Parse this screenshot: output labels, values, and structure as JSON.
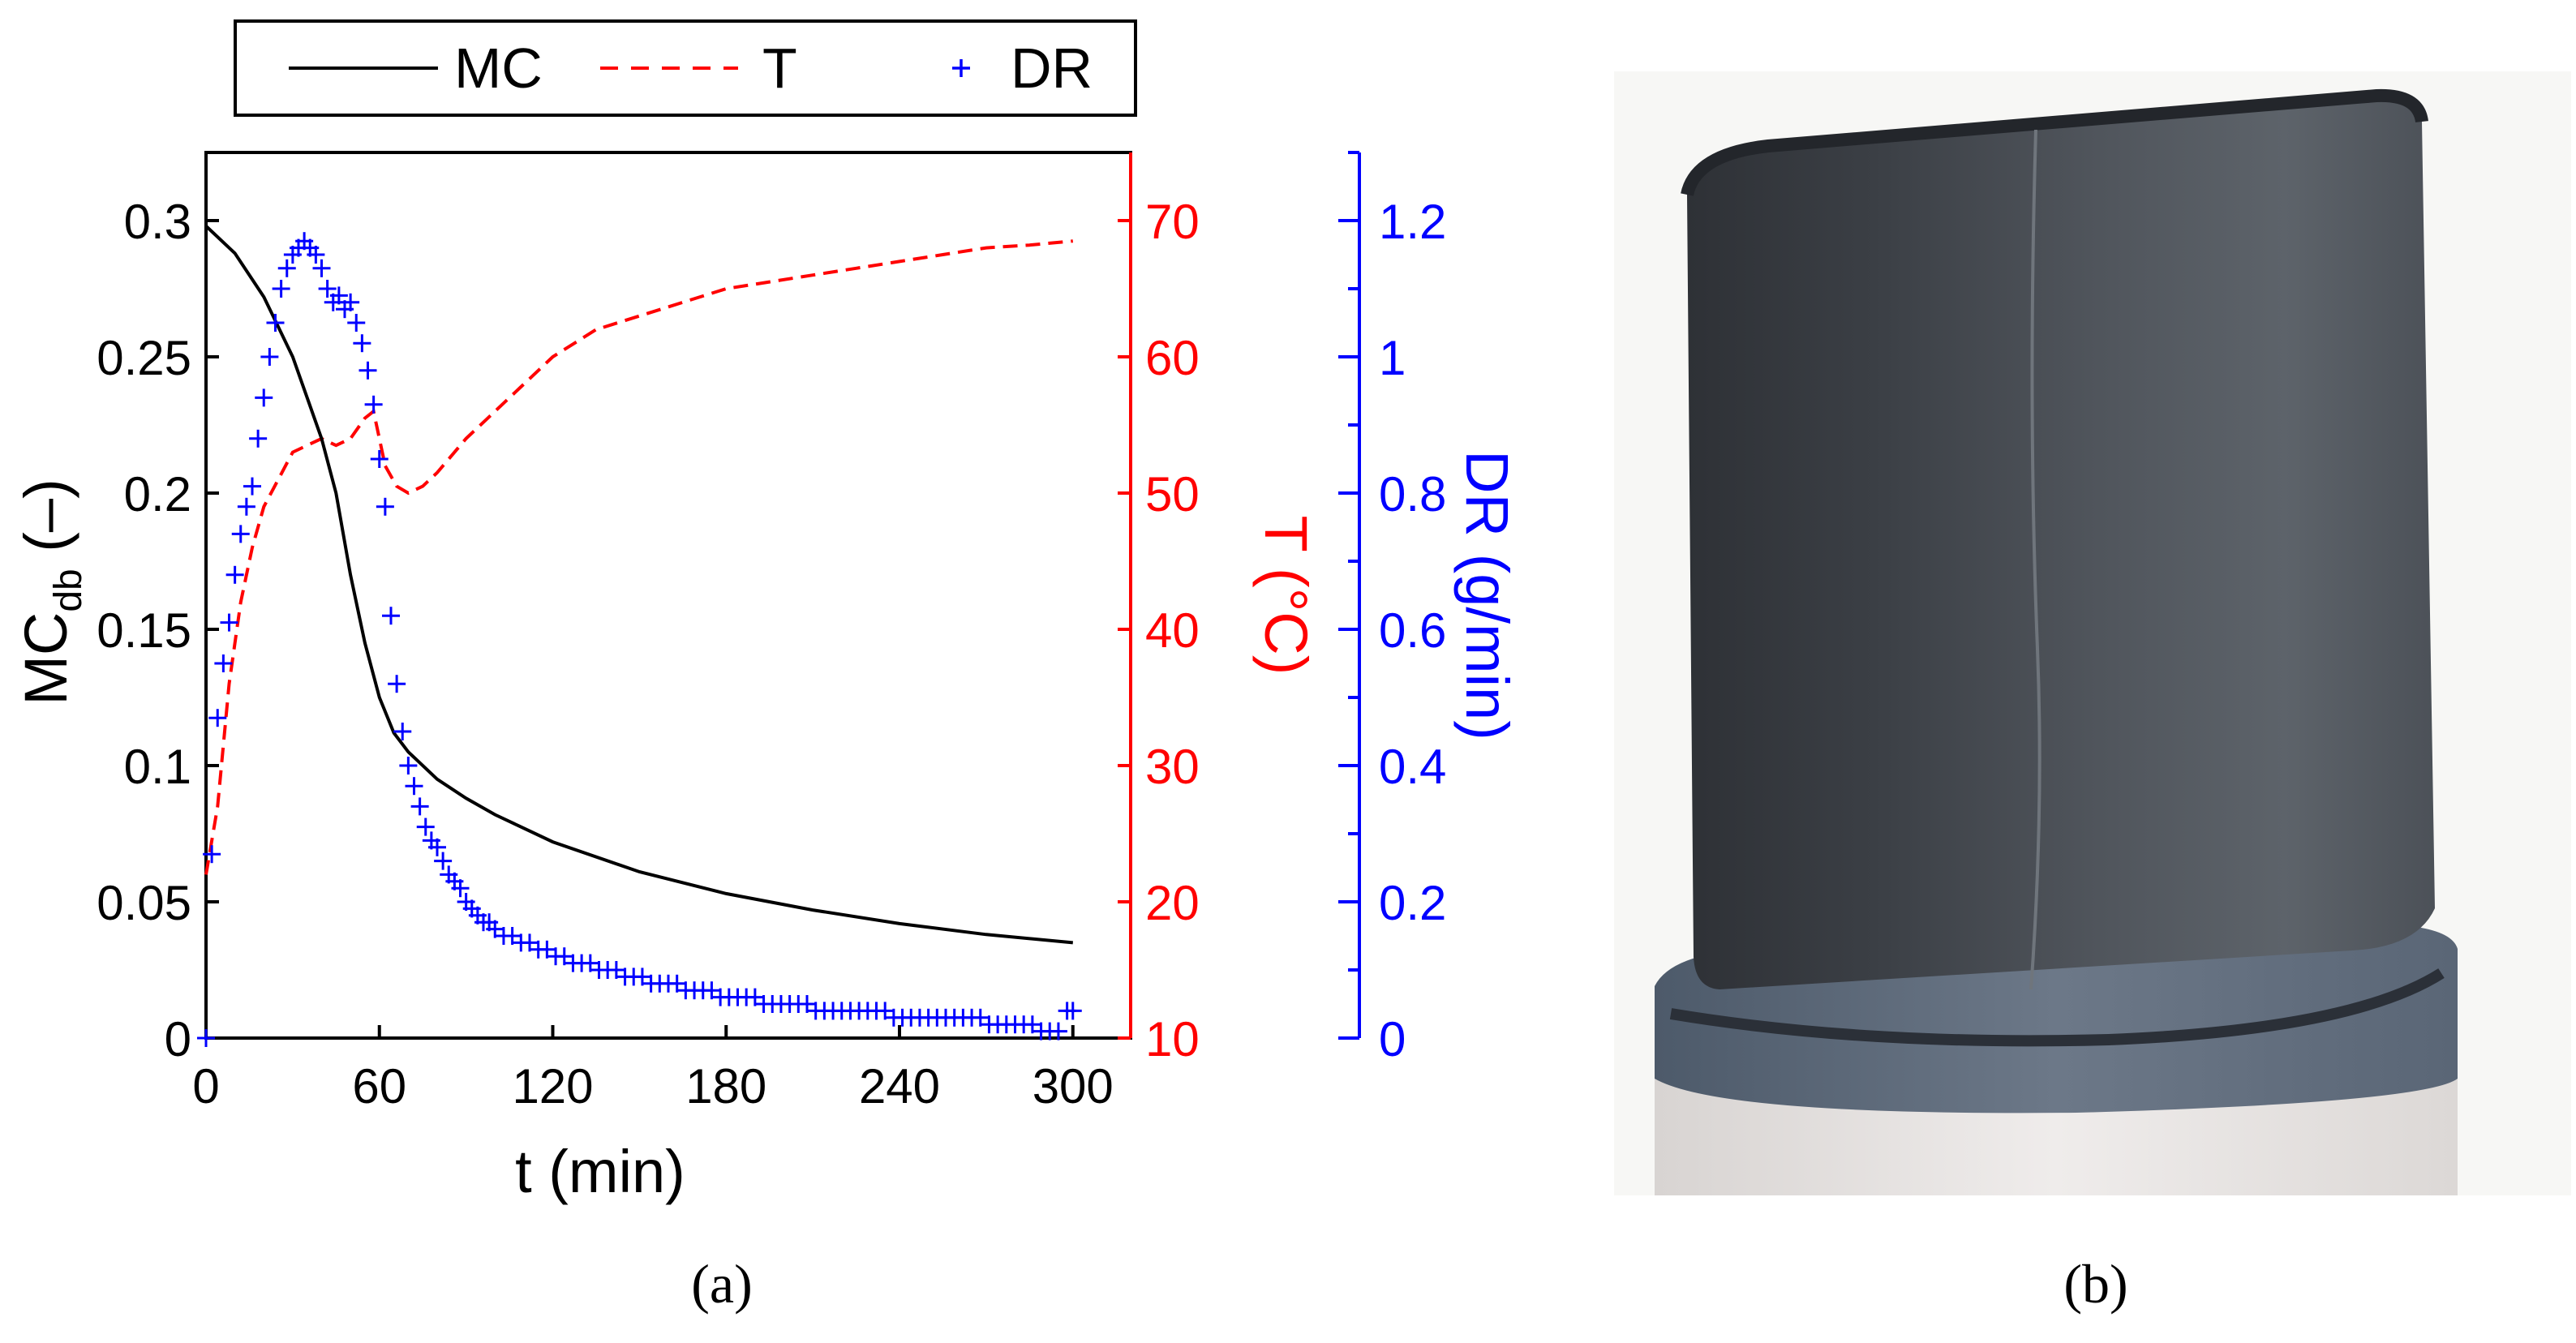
{
  "colors": {
    "mc": "#000000",
    "temperature": "#ff0000",
    "drying_rate": "#0000ff",
    "photo_background": "#f7f7f5"
  },
  "captions": {
    "left": "(a)",
    "right": "(b)"
  },
  "photo": {
    "subject": "grey cylindrical clay sample on transparent holder"
  },
  "chart_data": {
    "type": "line",
    "title": "",
    "xlabel": "t (min)",
    "xlim": [
      0,
      320
    ],
    "x_ticks": [
      0,
      60,
      120,
      180,
      240,
      300
    ],
    "x_tick_labels": [
      "0",
      "60",
      "120",
      "180",
      "240",
      "300"
    ],
    "legend": {
      "placement": "top",
      "entries": [
        {
          "key": "mc",
          "label": "MC",
          "style": "solid-line"
        },
        {
          "key": "temperature",
          "label": "T",
          "style": "dashed-line"
        },
        {
          "key": "drying_rate",
          "label": "DR",
          "style": "plus-marker"
        }
      ]
    },
    "axes": {
      "left": {
        "label": "MC",
        "label_sub": "db",
        "label_suffix": " (–)",
        "ylim": [
          0,
          0.325
        ],
        "ticks": [
          0,
          0.05,
          0.1,
          0.15,
          0.2,
          0.25,
          0.3
        ],
        "tick_labels": [
          "0",
          "0.05",
          "0.1",
          "0.15",
          "0.2",
          "0.25",
          "0.3"
        ]
      },
      "right1": {
        "label": "T (°C)",
        "ylim": [
          10,
          75
        ],
        "ticks": [
          10,
          20,
          30,
          40,
          50,
          60,
          70
        ],
        "tick_labels": [
          "10",
          "20",
          "30",
          "40",
          "50",
          "60",
          "70"
        ]
      },
      "right2": {
        "label": "DR (g/min)",
        "ylim": [
          0,
          1.3
        ],
        "ticks": [
          0,
          0.2,
          0.4,
          0.6,
          0.8,
          1.0,
          1.2
        ],
        "tick_labels": [
          "0",
          "0.2",
          "0.4",
          "0.6",
          "0.8",
          "1",
          "1.2"
        ]
      }
    },
    "series": [
      {
        "name": "MC",
        "axis": "left",
        "x": [
          0,
          10,
          20,
          30,
          40,
          45,
          50,
          55,
          60,
          65,
          70,
          80,
          90,
          100,
          120,
          150,
          180,
          210,
          240,
          270,
          300
        ],
        "values": [
          0.298,
          0.288,
          0.272,
          0.25,
          0.22,
          0.2,
          0.17,
          0.145,
          0.125,
          0.112,
          0.105,
          0.095,
          0.088,
          0.082,
          0.072,
          0.061,
          0.053,
          0.047,
          0.042,
          0.038,
          0.035
        ]
      },
      {
        "name": "T",
        "axis": "right1",
        "x": [
          0,
          4,
          8,
          12,
          16,
          20,
          25,
          30,
          35,
          40,
          45,
          50,
          55,
          58,
          62,
          66,
          70,
          75,
          80,
          90,
          100,
          110,
          120,
          135,
          150,
          165,
          180,
          195,
          210,
          225,
          240,
          255,
          270,
          285,
          300
        ],
        "values": [
          22,
          27,
          36,
          42,
          46,
          49,
          51,
          53,
          53.5,
          54,
          53.5,
          54,
          55.5,
          56,
          52,
          50.5,
          50,
          50.5,
          51.5,
          54,
          56,
          58,
          60,
          62,
          63,
          64,
          65,
          65.5,
          66,
          66.5,
          67,
          67.5,
          68,
          68.2,
          68.5
        ]
      },
      {
        "name": "DR",
        "axis": "right2",
        "x": [
          0,
          2,
          4,
          6,
          8,
          10,
          12,
          14,
          16,
          18,
          20,
          22,
          24,
          26,
          28,
          30,
          32,
          34,
          36,
          38,
          40,
          42,
          44,
          46,
          48,
          50,
          52,
          54,
          56,
          58,
          60,
          62,
          64,
          66,
          68,
          70,
          72,
          74,
          76,
          78,
          80,
          82,
          84,
          86,
          88,
          90,
          92,
          94,
          96,
          98,
          100,
          103,
          106,
          109,
          112,
          115,
          118,
          121,
          124,
          127,
          130,
          133,
          136,
          139,
          142,
          145,
          148,
          151,
          154,
          157,
          160,
          163,
          166,
          169,
          172,
          175,
          178,
          181,
          184,
          187,
          190,
          193,
          196,
          199,
          202,
          205,
          208,
          211,
          214,
          217,
          220,
          223,
          226,
          229,
          232,
          235,
          238,
          241,
          244,
          247,
          250,
          253,
          256,
          259,
          262,
          265,
          268,
          271,
          274,
          277,
          280,
          283,
          286,
          289,
          292,
          295,
          298,
          300
        ],
        "values": [
          0.0,
          0.27,
          0.47,
          0.55,
          0.61,
          0.68,
          0.74,
          0.78,
          0.81,
          0.88,
          0.94,
          1.0,
          1.05,
          1.1,
          1.13,
          1.15,
          1.16,
          1.17,
          1.16,
          1.15,
          1.13,
          1.1,
          1.08,
          1.09,
          1.07,
          1.08,
          1.05,
          1.02,
          0.98,
          0.93,
          0.85,
          0.78,
          0.62,
          0.52,
          0.45,
          0.4,
          0.37,
          0.34,
          0.31,
          0.29,
          0.28,
          0.26,
          0.24,
          0.23,
          0.22,
          0.2,
          0.19,
          0.18,
          0.17,
          0.17,
          0.16,
          0.15,
          0.15,
          0.14,
          0.14,
          0.13,
          0.13,
          0.12,
          0.12,
          0.11,
          0.11,
          0.11,
          0.1,
          0.1,
          0.1,
          0.09,
          0.09,
          0.09,
          0.08,
          0.08,
          0.08,
          0.08,
          0.07,
          0.07,
          0.07,
          0.07,
          0.06,
          0.06,
          0.06,
          0.06,
          0.06,
          0.05,
          0.05,
          0.05,
          0.05,
          0.05,
          0.05,
          0.04,
          0.04,
          0.04,
          0.04,
          0.04,
          0.04,
          0.04,
          0.04,
          0.04,
          0.03,
          0.03,
          0.03,
          0.03,
          0.03,
          0.03,
          0.03,
          0.03,
          0.03,
          0.03,
          0.03,
          0.02,
          0.02,
          0.02,
          0.02,
          0.02,
          0.02,
          0.01,
          0.01,
          0.01,
          0.04,
          0.04
        ]
      }
    ]
  }
}
